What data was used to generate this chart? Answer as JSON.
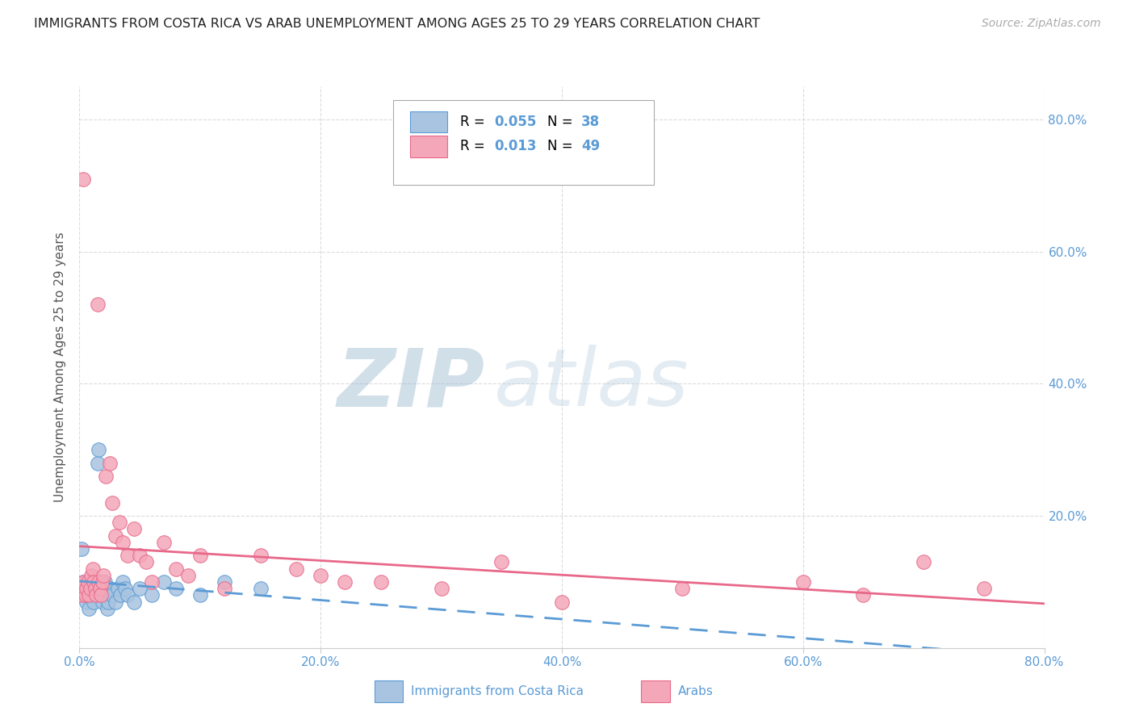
{
  "title": "IMMIGRANTS FROM COSTA RICA VS ARAB UNEMPLOYMENT AMONG AGES 25 TO 29 YEARS CORRELATION CHART",
  "source": "Source: ZipAtlas.com",
  "ylabel": "Unemployment Among Ages 25 to 29 years",
  "xlim": [
    0.0,
    0.8
  ],
  "ylim": [
    0.0,
    0.85
  ],
  "xticks": [
    0.0,
    0.2,
    0.4,
    0.6,
    0.8
  ],
  "xticklabels": [
    "0.0%",
    "20.0%",
    "40.0%",
    "60.0%",
    "80.0%"
  ],
  "yticks": [
    0.0,
    0.2,
    0.4,
    0.6,
    0.8
  ],
  "yticklabels_right": [
    "",
    "20.0%",
    "40.0%",
    "60.0%",
    "80.0%"
  ],
  "costa_rica_fill": "#a8c4e0",
  "costa_rica_edge": "#5b9bd5",
  "arab_fill": "#f4a7b9",
  "arab_edge": "#e8688a",
  "trend_cr_color": "#5b9bd5",
  "trend_arab_color": "#e8688a",
  "R_costa_rica": 0.055,
  "N_costa_rica": 38,
  "R_arab": 0.013,
  "N_arab": 49,
  "bg_color": "#ffffff",
  "grid_color": "#cccccc",
  "title_color": "#222222",
  "source_color": "#aaaaaa",
  "label_color": "#555555",
  "tick_color": "#5b9bd5",
  "legend_border": "#aaaaaa",
  "watermark_zip_color": "#b0c8e0",
  "watermark_atlas_color": "#c0d0e8",
  "costa_rica_x": [
    0.002,
    0.003,
    0.004,
    0.005,
    0.006,
    0.007,
    0.008,
    0.009,
    0.01,
    0.011,
    0.012,
    0.013,
    0.015,
    0.016,
    0.017,
    0.018,
    0.019,
    0.02,
    0.021,
    0.022,
    0.023,
    0.024,
    0.025,
    0.027,
    0.03,
    0.032,
    0.034,
    0.036,
    0.038,
    0.04,
    0.045,
    0.05,
    0.06,
    0.07,
    0.08,
    0.1,
    0.12,
    0.15
  ],
  "costa_rica_y": [
    0.15,
    0.1,
    0.08,
    0.09,
    0.07,
    0.08,
    0.06,
    0.1,
    0.09,
    0.08,
    0.07,
    0.09,
    0.28,
    0.3,
    0.1,
    0.08,
    0.07,
    0.09,
    0.1,
    0.08,
    0.06,
    0.07,
    0.09,
    0.08,
    0.07,
    0.09,
    0.08,
    0.1,
    0.09,
    0.08,
    0.07,
    0.09,
    0.08,
    0.1,
    0.09,
    0.08,
    0.1,
    0.09
  ],
  "arab_x": [
    0.001,
    0.002,
    0.003,
    0.004,
    0.005,
    0.006,
    0.007,
    0.008,
    0.009,
    0.01,
    0.011,
    0.012,
    0.013,
    0.014,
    0.015,
    0.016,
    0.017,
    0.018,
    0.019,
    0.02,
    0.022,
    0.025,
    0.027,
    0.03,
    0.033,
    0.036,
    0.04,
    0.045,
    0.05,
    0.055,
    0.06,
    0.07,
    0.08,
    0.09,
    0.1,
    0.12,
    0.15,
    0.18,
    0.2,
    0.22,
    0.25,
    0.3,
    0.35,
    0.4,
    0.5,
    0.6,
    0.65,
    0.7,
    0.75
  ],
  "arab_y": [
    0.08,
    0.09,
    0.71,
    0.1,
    0.08,
    0.09,
    0.1,
    0.08,
    0.09,
    0.11,
    0.12,
    0.1,
    0.09,
    0.08,
    0.52,
    0.1,
    0.09,
    0.08,
    0.1,
    0.11,
    0.26,
    0.28,
    0.22,
    0.17,
    0.19,
    0.16,
    0.14,
    0.18,
    0.14,
    0.13,
    0.1,
    0.16,
    0.12,
    0.11,
    0.14,
    0.09,
    0.14,
    0.12,
    0.11,
    0.1,
    0.1,
    0.09,
    0.13,
    0.07,
    0.09,
    0.1,
    0.08,
    0.13,
    0.09
  ]
}
